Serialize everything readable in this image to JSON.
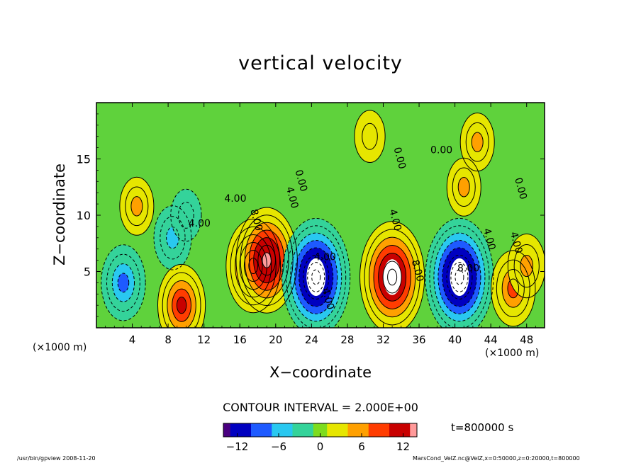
{
  "title": "vertical velocity",
  "ylabel": "Z−coordinate",
  "xlabel": "X−coordinate",
  "xunit_left": "(×1000 m)",
  "xunit_right": "(×1000 m)",
  "contour_interval": "CONTOUR INTERVAL = 2.000E+00",
  "time_label": "t=800000 s",
  "footer_left": "/usr/bin/gpview   2008-11-20",
  "footer_right": "MarsCond_VelZ.nc@VelZ,x=0:50000,z=0:20000,t=800000",
  "chart_data": {
    "type": "heatmap",
    "title": "vertical velocity",
    "xlabel": "X−coordinate",
    "ylabel": "Z−coordinate",
    "x_unit": "(×1000 m)",
    "xlim": [
      0,
      50
    ],
    "ylim": [
      0,
      20
    ],
    "x_ticks": [
      4,
      8,
      12,
      16,
      20,
      24,
      28,
      32,
      36,
      40,
      44,
      48
    ],
    "y_ticks": [
      5,
      10,
      15
    ],
    "contour_labels": [
      "4.00",
      "8.00",
      "4.00",
      "4.00",
      "0.00",
      "0.00",
      "0.00",
      "4.00",
      "4.00",
      "4.00",
      "4.00",
      "8.00",
      "8.00",
      "4.00",
      "0.00"
    ],
    "colorbar": {
      "range": [
        -14,
        14
      ],
      "ticks": [
        -12,
        -6,
        0,
        6,
        12
      ],
      "colors": [
        "#4a0080",
        "#0000c0",
        "#1e5aff",
        "#29c8f0",
        "#34d39a",
        "#7ddc1e",
        "#e6e600",
        "#ffa000",
        "#ff3c00",
        "#c80000",
        "#ff9a9a"
      ]
    },
    "features": [
      {
        "x": 4.5,
        "z": 10.8,
        "value": 5
      },
      {
        "x": 3.0,
        "z": 4.0,
        "value": -8
      },
      {
        "x": 8.5,
        "z": 8.0,
        "value": -6
      },
      {
        "x": 10.0,
        "z": 10.0,
        "value": -4
      },
      {
        "x": 9.5,
        "z": 2.0,
        "value": 9
      },
      {
        "x": 17.5,
        "z": 5.5,
        "value": 11
      },
      {
        "x": 19.0,
        "z": 6.0,
        "value": 13
      },
      {
        "x": 24.5,
        "z": 4.5,
        "value": -15
      },
      {
        "x": 33.0,
        "z": 4.5,
        "value": 14
      },
      {
        "x": 40.5,
        "z": 4.5,
        "value": -15
      },
      {
        "x": 46.5,
        "z": 3.5,
        "value": 8
      },
      {
        "x": 48.0,
        "z": 5.5,
        "value": 6
      },
      {
        "x": 30.5,
        "z": 17.0,
        "value": 4
      },
      {
        "x": 41.0,
        "z": 12.5,
        "value": 5
      },
      {
        "x": 42.5,
        "z": 16.5,
        "value": 5
      }
    ]
  }
}
